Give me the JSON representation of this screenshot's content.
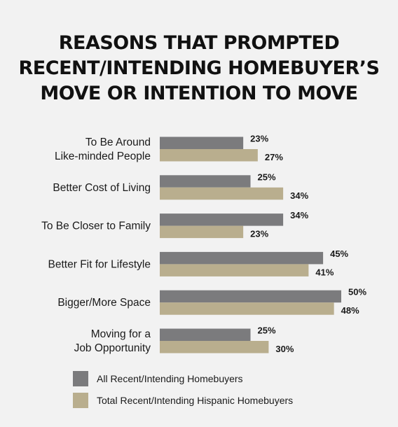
{
  "title_lines": [
    "REASONS THAT PROMPTED",
    "RECENT/INTENDING HOMEBUYER’S",
    "MOVE OR INTENTION TO MOVE"
  ],
  "colors": {
    "series1": "#7b7b7d",
    "series2": "#b9ae8e",
    "background": "#f2f2f2"
  },
  "chart_data": {
    "type": "bar",
    "orientation": "horizontal",
    "title": "REASONS THAT PROMPTED RECENT/INTENDING HOMEBUYER’S MOVE OR INTENTION TO MOVE",
    "categories": [
      [
        "To Be Around",
        "Like-minded People"
      ],
      [
        "Better Cost of Living"
      ],
      [
        "To Be Closer to Family"
      ],
      [
        "Better Fit for Lifestyle"
      ],
      [
        "Bigger/More Space"
      ],
      [
        "Moving for a",
        "Job Opportunity"
      ]
    ],
    "series": [
      {
        "name": "All Recent/Intending Homebuyers",
        "values": [
          23,
          25,
          34,
          45,
          50,
          25
        ]
      },
      {
        "name": "Total Recent/Intending Hispanic Homebuyers",
        "values": [
          27,
          34,
          23,
          41,
          48,
          30
        ]
      }
    ],
    "value_suffix": "%",
    "xlim": [
      0,
      100
    ],
    "grid": false,
    "legend_position": "bottom-left"
  }
}
